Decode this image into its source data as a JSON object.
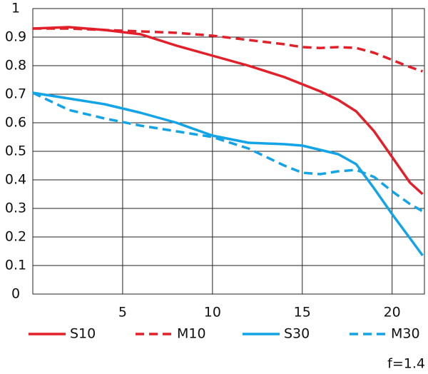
{
  "chart_data": {
    "type": "line",
    "x": [
      0,
      2,
      4,
      6,
      8,
      10,
      12,
      14,
      15,
      16,
      17,
      18,
      19,
      20,
      21,
      21.7
    ],
    "series": [
      {
        "name": "S10",
        "color": "#e3202a",
        "style": "solid",
        "values": [
          0.93,
          0.935,
          0.925,
          0.91,
          0.87,
          0.835,
          0.8,
          0.76,
          0.735,
          0.71,
          0.68,
          0.64,
          0.57,
          0.48,
          0.39,
          0.35
        ]
      },
      {
        "name": "M10",
        "color": "#e3202a",
        "style": "dashed",
        "values": [
          0.93,
          0.93,
          0.925,
          0.92,
          0.915,
          0.905,
          0.89,
          0.875,
          0.865,
          0.862,
          0.865,
          0.862,
          0.845,
          0.82,
          0.795,
          0.78
        ]
      },
      {
        "name": "S30",
        "color": "#12a4e6",
        "style": "solid",
        "values": [
          0.705,
          0.685,
          0.665,
          0.635,
          0.6,
          0.555,
          0.53,
          0.525,
          0.52,
          0.505,
          0.49,
          0.455,
          0.37,
          0.28,
          0.195,
          0.135
        ]
      },
      {
        "name": "M30",
        "color": "#12a4e6",
        "style": "dashed",
        "values": [
          0.705,
          0.645,
          0.615,
          0.59,
          0.57,
          0.55,
          0.51,
          0.45,
          0.425,
          0.42,
          0.43,
          0.435,
          0.41,
          0.36,
          0.315,
          0.29
        ]
      }
    ],
    "xlim": [
      0,
      21.8
    ],
    "xticks": [
      5,
      10,
      15,
      20
    ],
    "ylim": [
      0,
      1
    ],
    "yticks": [
      0,
      0.1,
      0.2,
      0.3,
      0.4,
      0.5,
      0.6,
      0.7,
      0.8,
      0.9,
      1
    ],
    "grid": true,
    "annotation": "f=1.4"
  }
}
